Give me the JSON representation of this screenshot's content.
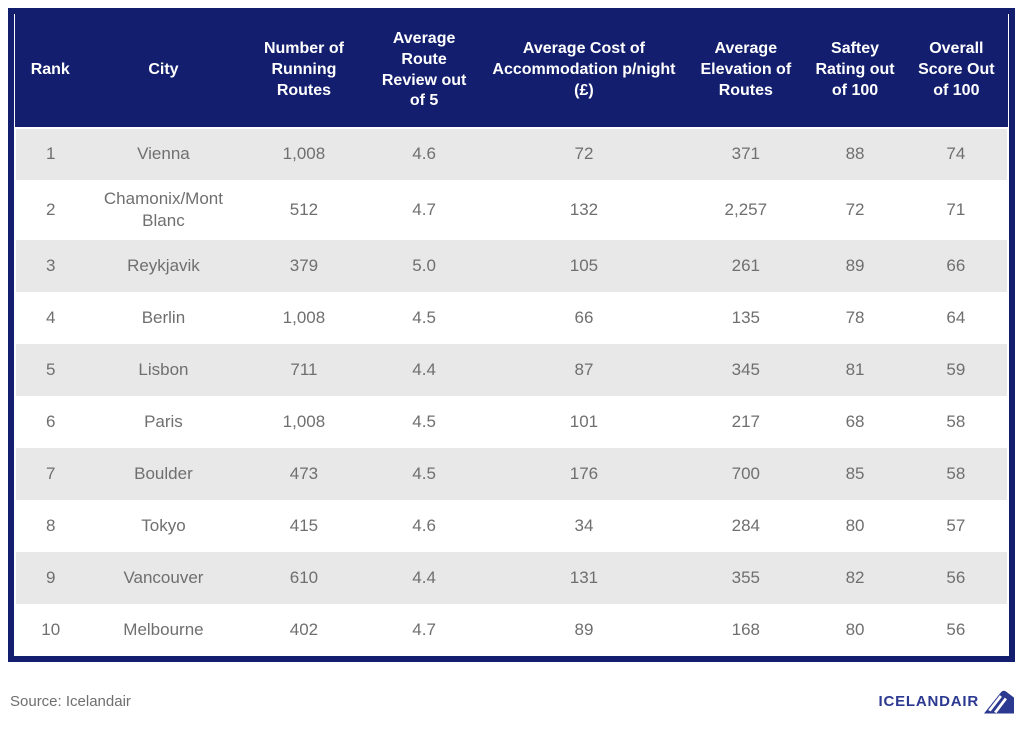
{
  "chart_data": {
    "type": "table",
    "columns": [
      "Rank",
      "City",
      "Number of Running Routes",
      "Average Route Review out of 5",
      "Average Cost of Accommodation p/night (£)",
      "Average Elevation of Routes",
      "Saftey Rating out of 100",
      "Overall Score Out of 100"
    ],
    "column_keys": [
      "rank",
      "city",
      "running-routes",
      "route-review",
      "accommodation-cost",
      "elevation",
      "safety-rating",
      "overall-score"
    ],
    "rows": [
      [
        "1",
        "Vienna",
        "1,008",
        "4.6",
        "72",
        "371",
        "88",
        "74"
      ],
      [
        "2",
        "Chamonix/Mont Blanc",
        "512",
        "4.7",
        "132",
        "2,257",
        "72",
        "71"
      ],
      [
        "3",
        "Reykjavik",
        "379",
        "5.0",
        "105",
        "261",
        "89",
        "66"
      ],
      [
        "4",
        "Berlin",
        "1,008",
        "4.5",
        "66",
        "135",
        "78",
        "64"
      ],
      [
        "5",
        "Lisbon",
        "711",
        "4.4",
        "87",
        "345",
        "81",
        "59"
      ],
      [
        "6",
        "Paris",
        "1,008",
        "4.5",
        "101",
        "217",
        "68",
        "58"
      ],
      [
        "7",
        "Boulder",
        "473",
        "4.5",
        "176",
        "700",
        "85",
        "58"
      ],
      [
        "8",
        "Tokyo",
        "415",
        "4.6",
        "34",
        "284",
        "80",
        "57"
      ],
      [
        "9",
        "Vancouver",
        "610",
        "4.4",
        "131",
        "355",
        "82",
        "56"
      ],
      [
        "10",
        "Melbourne",
        "402",
        "4.7",
        "89",
        "168",
        "80",
        "56"
      ]
    ],
    "layout": {
      "striped_rows": "odd",
      "header_background": "navy",
      "grid": false
    }
  },
  "footer": {
    "source": "Source: Icelandair",
    "brand": "ICELANDAIR"
  },
  "colors": {
    "header_navy": "#131F6E",
    "row_stripe_gray": "#E8E8E8",
    "cell_text_gray": "#6F6F6F",
    "header_text": "#FFFFFF",
    "logo_navy": "#2B3990"
  },
  "icons": {
    "tailfin": "icelandair-tailfin-icon"
  }
}
